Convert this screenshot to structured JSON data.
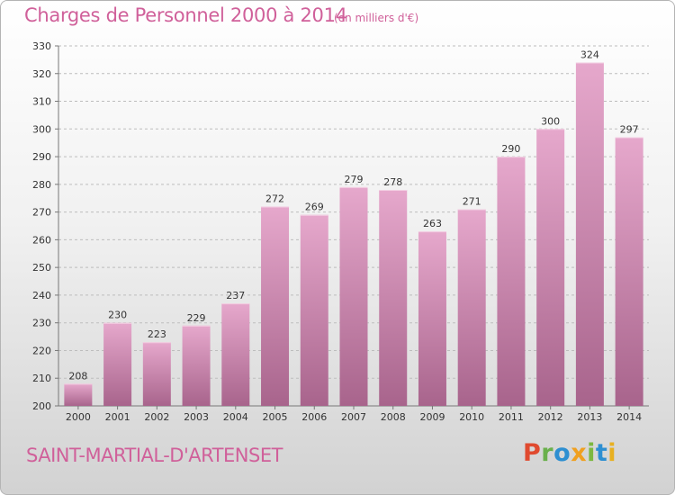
{
  "header": {
    "title": "Charges de Personnel 2000 à 2014",
    "subtitle": "(en milliers d'€)"
  },
  "footer": {
    "commune": "SAINT-MARTIAL-D'ARTENSET",
    "logo": "Proxiti"
  },
  "colors": {
    "title": "#d0609a",
    "bar_top": "#e6a8cc",
    "bar_bottom": "#a8648c"
  },
  "chart_data": {
    "type": "bar",
    "title": "Charges de Personnel 2000 à 2014",
    "subtitle": "(en milliers d'€)",
    "categories": [
      "2000",
      "2001",
      "2002",
      "2003",
      "2004",
      "2005",
      "2006",
      "2007",
      "2008",
      "2009",
      "2010",
      "2011",
      "2012",
      "2013",
      "2014"
    ],
    "values": [
      208,
      230,
      223,
      229,
      237,
      272,
      269,
      279,
      278,
      263,
      271,
      290,
      300,
      324,
      297
    ],
    "xlabel": "",
    "ylabel": "",
    "ylim": [
      200,
      330
    ],
    "yticks": [
      200,
      210,
      220,
      230,
      240,
      250,
      260,
      270,
      280,
      290,
      300,
      310,
      320,
      330
    ],
    "grid": true
  }
}
